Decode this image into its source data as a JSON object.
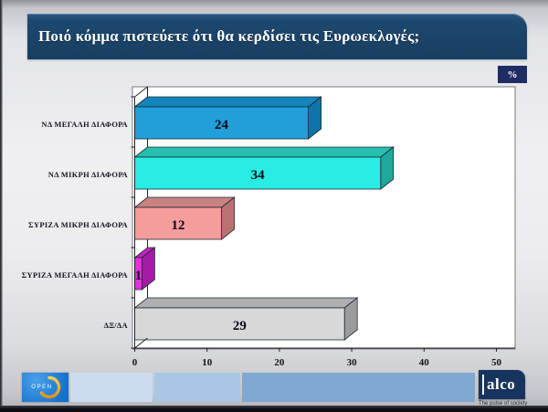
{
  "header": {
    "title": "Ποιό κόμμα πιστεύετε ότι θα κερδίσει τις Ευρωεκλογές;",
    "unit_badge": "%"
  },
  "chart_data": {
    "type": "bar",
    "orientation": "horizontal",
    "style": "3d",
    "title": "Ποιό κόμμα πιστεύετε ότι θα κερδίσει τις Ευρωεκλογές;",
    "unit": "%",
    "categories": [
      "ΝΔ ΜΕΓΑΛΗ ΔΙΑΦΟΡΑ",
      "ΝΔ ΜΙΚΡΗ ΔΙΑΦΟΡΑ",
      "ΣΥΡΙΖΑ ΜΙΚΡΗ ΔΙΑΦΟΡΑ",
      "ΣΥΡΙΖΑ ΜΕΓΑΛΗ ΔΙΑΦΟΡΑ",
      "ΔΞ/ΔΑ"
    ],
    "values": [
      24,
      34,
      12,
      1,
      29
    ],
    "xlim": [
      0,
      50
    ],
    "xticks": [
      0,
      10,
      20,
      30,
      40,
      50
    ],
    "grid": false,
    "legend": false,
    "bar_colors": [
      {
        "front": "#219FD9",
        "top": "#1484BC",
        "side": "#0F74A8"
      },
      {
        "front": "#27EDE4",
        "top": "#26BFB0",
        "side": "#1FA89C"
      },
      {
        "front": "#F59C9C",
        "top": "#C98182",
        "side": "#BA7172"
      },
      {
        "front": "#E92CE0",
        "top": "#C521BE",
        "side": "#A51BA5"
      },
      {
        "front": "#D8D8D8",
        "top": "#AFAFAF",
        "side": "#9C9C9C"
      }
    ]
  },
  "footer": {
    "open_logo_text": "OPEN",
    "alco_logo_text": "alco",
    "alco_tagline": "The pulse of society"
  },
  "theme": {
    "header_bg": "#173E61",
    "badge_bg": "#1F2D64",
    "plot_bg": "#FFFFFF",
    "plot_border": "#7A7A7A",
    "axis_color": "#222222",
    "open_blue": "#1A82DE",
    "open_arc": "#EDA32F",
    "alco_bg": "#17345E",
    "footer_band_colors": [
      "#CADDEF",
      "#A9C7E3",
      "#7FA9D1"
    ]
  }
}
